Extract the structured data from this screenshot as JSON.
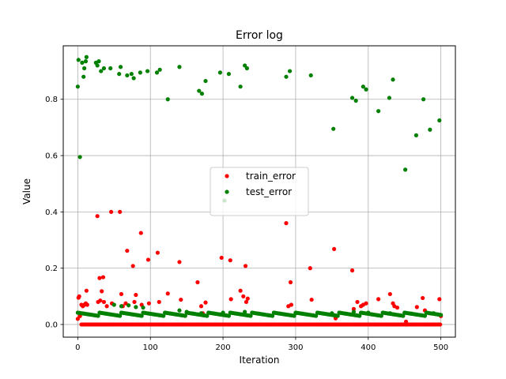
{
  "chart_data": {
    "type": "scatter",
    "title": "Error log",
    "xlabel": "Iteration",
    "ylabel": "Value",
    "xlim": [
      -20,
      520
    ],
    "ylim": [
      -0.045,
      0.99
    ],
    "xticks": [
      0,
      100,
      200,
      300,
      400,
      500
    ],
    "yticks": [
      0.0,
      0.2,
      0.4,
      0.6,
      0.8
    ],
    "grid": true,
    "legend": {
      "placement": "center"
    },
    "series": [
      {
        "name": "train_error",
        "color": "#ff0000",
        "baseline": {
          "x_start": 5,
          "x_end": 500,
          "step": 2,
          "value": 0.0
        },
        "points": [
          [
            0,
            0.02
          ],
          [
            1,
            0.095
          ],
          [
            2,
            0.1
          ],
          [
            3,
            0.03
          ],
          [
            5,
            0.07
          ],
          [
            7,
            0.065
          ],
          [
            9,
            0.07
          ],
          [
            11,
            0.075
          ],
          [
            12,
            0.12
          ],
          [
            13,
            0.07
          ],
          [
            27,
            0.385
          ],
          [
            28,
            0.08
          ],
          [
            30,
            0.165
          ],
          [
            31,
            0.085
          ],
          [
            33,
            0.118
          ],
          [
            35,
            0.168
          ],
          [
            36,
            0.08
          ],
          [
            40,
            0.065
          ],
          [
            46,
            0.4
          ],
          [
            47,
            0.075
          ],
          [
            58,
            0.4
          ],
          [
            60,
            0.108
          ],
          [
            62,
            0.065
          ],
          [
            66,
            0.075
          ],
          [
            68,
            0.262
          ],
          [
            76,
            0.208
          ],
          [
            78,
            0.08
          ],
          [
            80,
            0.105
          ],
          [
            87,
            0.325
          ],
          [
            88,
            0.07
          ],
          [
            97,
            0.23
          ],
          [
            98,
            0.075
          ],
          [
            110,
            0.255
          ],
          [
            112,
            0.08
          ],
          [
            124,
            0.11
          ],
          [
            140,
            0.222
          ],
          [
            142,
            0.088
          ],
          [
            165,
            0.15
          ],
          [
            170,
            0.065
          ],
          [
            172,
            0.04
          ],
          [
            176,
            0.078
          ],
          [
            198,
            0.237
          ],
          [
            210,
            0.228
          ],
          [
            211,
            0.09
          ],
          [
            224,
            0.12
          ],
          [
            228,
            0.1
          ],
          [
            231,
            0.208
          ],
          [
            232,
            0.08
          ],
          [
            234,
            0.092
          ],
          [
            287,
            0.36
          ],
          [
            290,
            0.065
          ],
          [
            293,
            0.15
          ],
          [
            294,
            0.07
          ],
          [
            320,
            0.2
          ],
          [
            322,
            0.088
          ],
          [
            353,
            0.268
          ],
          [
            355,
            0.022
          ],
          [
            378,
            0.192
          ],
          [
            380,
            0.055
          ],
          [
            385,
            0.08
          ],
          [
            390,
            0.065
          ],
          [
            393,
            0.07
          ],
          [
            397,
            0.075
          ],
          [
            414,
            0.09
          ],
          [
            430,
            0.108
          ],
          [
            434,
            0.075
          ],
          [
            436,
            0.065
          ],
          [
            440,
            0.06
          ],
          [
            452,
            0.01
          ],
          [
            467,
            0.062
          ],
          [
            475,
            0.094
          ],
          [
            478,
            0.05
          ],
          [
            484,
            0.04
          ],
          [
            498,
            0.09
          ],
          [
            500,
            0.03
          ]
        ]
      },
      {
        "name": "test_error",
        "color": "#008000",
        "baseline": {
          "x_start": 0,
          "x_end": 500,
          "step": 2,
          "value": 0.03
        },
        "points": [
          [
            0,
            0.845
          ],
          [
            1,
            0.94
          ],
          [
            3,
            0.595
          ],
          [
            6,
            0.93
          ],
          [
            8,
            0.88
          ],
          [
            9,
            0.91
          ],
          [
            11,
            0.935
          ],
          [
            12,
            0.95
          ],
          [
            25,
            0.93
          ],
          [
            27,
            0.92
          ],
          [
            29,
            0.935
          ],
          [
            32,
            0.9
          ],
          [
            36,
            0.91
          ],
          [
            45,
            0.91
          ],
          [
            57,
            0.89
          ],
          [
            59,
            0.915
          ],
          [
            68,
            0.885
          ],
          [
            74,
            0.89
          ],
          [
            77,
            0.875
          ],
          [
            86,
            0.895
          ],
          [
            96,
            0.9
          ],
          [
            109,
            0.895
          ],
          [
            113,
            0.905
          ],
          [
            124,
            0.8
          ],
          [
            140,
            0.915
          ],
          [
            167,
            0.83
          ],
          [
            171,
            0.82
          ],
          [
            176,
            0.865
          ],
          [
            196,
            0.895
          ],
          [
            208,
            0.89
          ],
          [
            224,
            0.845
          ],
          [
            230,
            0.92
          ],
          [
            233,
            0.91
          ],
          [
            202,
            0.44
          ],
          [
            287,
            0.88
          ],
          [
            292,
            0.9
          ],
          [
            321,
            0.885
          ],
          [
            352,
            0.695
          ],
          [
            378,
            0.805
          ],
          [
            383,
            0.795
          ],
          [
            393,
            0.845
          ],
          [
            397,
            0.835
          ],
          [
            414,
            0.758
          ],
          [
            429,
            0.805
          ],
          [
            434,
            0.87
          ],
          [
            451,
            0.55
          ],
          [
            466,
            0.672
          ],
          [
            476,
            0.8
          ],
          [
            485,
            0.692
          ],
          [
            498,
            0.725
          ],
          [
            50,
            0.07
          ],
          [
            60,
            0.065
          ],
          [
            70,
            0.068
          ],
          [
            80,
            0.062
          ],
          [
            90,
            0.06
          ],
          [
            140,
            0.05
          ],
          [
            150,
            0.045
          ],
          [
            170,
            0.04
          ],
          [
            200,
            0.042
          ],
          [
            230,
            0.045
          ],
          [
            300,
            0.04
          ],
          [
            350,
            0.04
          ],
          [
            380,
            0.045
          ],
          [
            400,
            0.042
          ],
          [
            430,
            0.04
          ],
          [
            460,
            0.038
          ],
          [
            490,
            0.04
          ]
        ]
      }
    ]
  }
}
